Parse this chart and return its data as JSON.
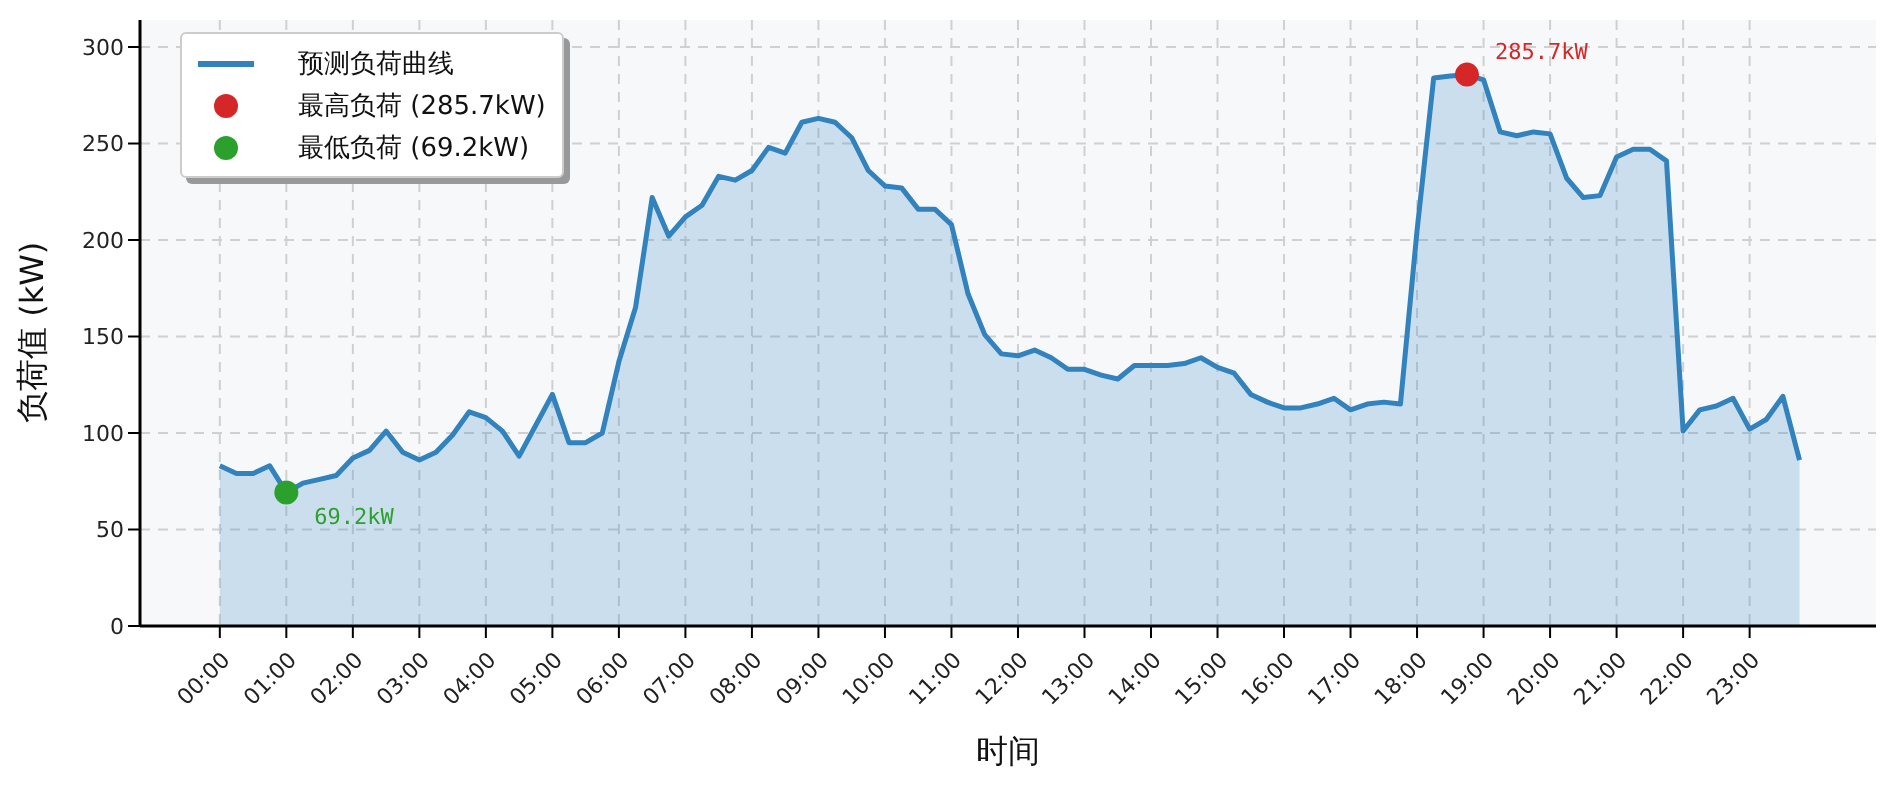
{
  "chart_data": {
    "type": "area",
    "xlabel": "时间",
    "ylabel": "负荷值 (kW)",
    "xlim": [
      -1.2,
      24.9
    ],
    "ylim": [
      0,
      314
    ],
    "xticks": [
      {
        "value": 0,
        "label": "00:00"
      },
      {
        "value": 1,
        "label": "01:00"
      },
      {
        "value": 2,
        "label": "02:00"
      },
      {
        "value": 3,
        "label": "03:00"
      },
      {
        "value": 4,
        "label": "04:00"
      },
      {
        "value": 5,
        "label": "05:00"
      },
      {
        "value": 6,
        "label": "06:00"
      },
      {
        "value": 7,
        "label": "07:00"
      },
      {
        "value": 8,
        "label": "08:00"
      },
      {
        "value": 9,
        "label": "09:00"
      },
      {
        "value": 10,
        "label": "10:00"
      },
      {
        "value": 11,
        "label": "11:00"
      },
      {
        "value": 12,
        "label": "12:00"
      },
      {
        "value": 13,
        "label": "13:00"
      },
      {
        "value": 14,
        "label": "14:00"
      },
      {
        "value": 15,
        "label": "15:00"
      },
      {
        "value": 16,
        "label": "16:00"
      },
      {
        "value": 17,
        "label": "17:00"
      },
      {
        "value": 18,
        "label": "18:00"
      },
      {
        "value": 19,
        "label": "19:00"
      },
      {
        "value": 20,
        "label": "20:00"
      },
      {
        "value": 21,
        "label": "21:00"
      },
      {
        "value": 22,
        "label": "22:00"
      },
      {
        "value": 23,
        "label": "23:00"
      }
    ],
    "yticks": [
      0,
      50,
      100,
      150,
      200,
      250,
      300
    ],
    "grid": true,
    "legend": "top left",
    "x": [
      0,
      0.25,
      0.5,
      0.75,
      1,
      1.25,
      1.5,
      1.75,
      2,
      2.25,
      2.5,
      2.75,
      3,
      3.25,
      3.5,
      3.75,
      4,
      4.25,
      4.5,
      4.75,
      5,
      5.25,
      5.5,
      5.75,
      6,
      6.25,
      6.5,
      6.75,
      7,
      7.25,
      7.5,
      7.75,
      8,
      8.25,
      8.5,
      8.75,
      9,
      9.25,
      9.5,
      9.75,
      10,
      10.25,
      10.5,
      10.75,
      11,
      11.25,
      11.5,
      11.75,
      12,
      12.25,
      12.5,
      12.75,
      13,
      13.25,
      13.5,
      13.75,
      14,
      14.25,
      14.5,
      14.75,
      15,
      15.25,
      15.5,
      15.75,
      16,
      16.25,
      16.5,
      16.75,
      17,
      17.25,
      17.5,
      17.75,
      18,
      18.25,
      18.5,
      18.75,
      19,
      19.25,
      19.5,
      19.75,
      20,
      20.25,
      20.5,
      20.75,
      21,
      21.25,
      21.5,
      21.75,
      22,
      22.25,
      22.5,
      22.75,
      23,
      23.25,
      23.5,
      23.75
    ],
    "series": [
      {
        "name": "预测负荷曲线",
        "color": "#3182bd",
        "values": [
          83,
          79,
          79,
          83,
          69.2,
          74,
          76,
          78,
          87,
          91,
          101,
          90,
          86,
          90,
          99,
          111,
          108,
          101,
          88,
          104,
          120,
          95,
          95,
          100,
          137,
          165,
          222,
          202,
          212,
          218,
          233,
          231,
          236,
          248,
          245,
          261,
          263,
          261,
          253,
          236,
          228,
          227,
          216,
          216,
          208,
          172,
          151,
          141,
          140,
          143,
          139,
          133,
          133,
          130,
          128,
          135,
          135,
          135,
          136,
          139,
          134,
          131,
          120,
          116,
          113,
          113,
          115,
          118,
          112,
          115,
          116,
          115,
          205,
          284,
          285,
          285.7,
          283,
          256,
          254,
          256,
          255,
          232,
          222,
          223,
          243,
          247,
          247,
          241,
          101,
          112,
          114,
          118,
          102,
          107,
          119,
          86
        ]
      },
      {
        "name": "最高负荷 (285.7kW)",
        "type": "scatter",
        "color": "#d62728",
        "x": [
          18.75
        ],
        "values": [
          285.7
        ]
      },
      {
        "name": "最低负荷 (69.2kW)",
        "type": "scatter",
        "color": "#2ca02c",
        "x": [
          1
        ],
        "values": [
          69.2
        ]
      }
    ],
    "annotations": [
      {
        "text": "285.7kW",
        "x": 18.75,
        "y": 285.7
      },
      {
        "text": "69.2kW",
        "x": 1,
        "y": 69.2
      }
    ]
  }
}
